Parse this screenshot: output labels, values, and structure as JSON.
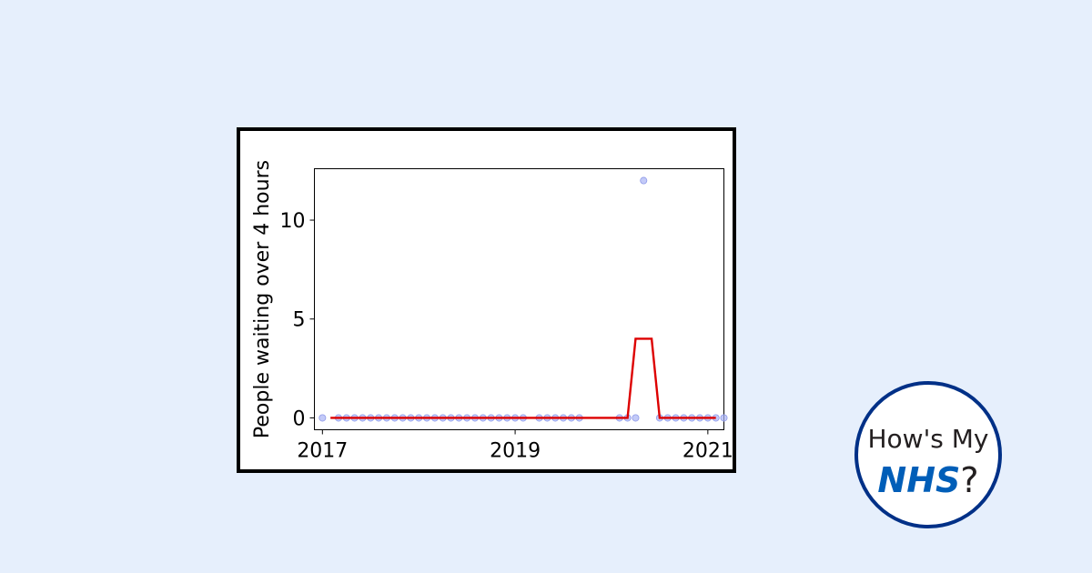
{
  "chart_data": {
    "type": "line",
    "title": "",
    "xlabel": "",
    "ylabel": "People waiting over 4 hours",
    "x_ticks": [
      "2017",
      "2019",
      "2021"
    ],
    "y_ticks": [
      0,
      5,
      10
    ],
    "xlim": [
      "2016-12",
      "2021-03"
    ],
    "ylim": [
      -0.6,
      12.6
    ],
    "grid": false,
    "legend": "none",
    "series": [
      {
        "kind": "scatter",
        "color": "#aab4f5",
        "points": [
          [
            "2017-01",
            0
          ],
          [
            "2017-03",
            0
          ],
          [
            "2017-04",
            0
          ],
          [
            "2017-05",
            0
          ],
          [
            "2017-06",
            0
          ],
          [
            "2017-07",
            0
          ],
          [
            "2017-08",
            0
          ],
          [
            "2017-09",
            0
          ],
          [
            "2017-10",
            0
          ],
          [
            "2017-11",
            0
          ],
          [
            "2017-12",
            0
          ],
          [
            "2018-01",
            0
          ],
          [
            "2018-02",
            0
          ],
          [
            "2018-03",
            0
          ],
          [
            "2018-04",
            0
          ],
          [
            "2018-05",
            0
          ],
          [
            "2018-06",
            0
          ],
          [
            "2018-07",
            0
          ],
          [
            "2018-08",
            0
          ],
          [
            "2018-09",
            0
          ],
          [
            "2018-10",
            0
          ],
          [
            "2018-11",
            0
          ],
          [
            "2018-12",
            0
          ],
          [
            "2019-01",
            0
          ],
          [
            "2019-02",
            0
          ],
          [
            "2019-04",
            0
          ],
          [
            "2019-05",
            0
          ],
          [
            "2019-06",
            0
          ],
          [
            "2019-07",
            0
          ],
          [
            "2019-08",
            0
          ],
          [
            "2019-09",
            0
          ],
          [
            "2020-02",
            0
          ],
          [
            "2020-03",
            0
          ],
          [
            "2020-04",
            0
          ],
          [
            "2020-05",
            12
          ],
          [
            "2020-07",
            0
          ],
          [
            "2020-08",
            0
          ],
          [
            "2020-09",
            0
          ],
          [
            "2020-10",
            0
          ],
          [
            "2020-11",
            0
          ],
          [
            "2020-12",
            0
          ],
          [
            "2021-01",
            0
          ],
          [
            "2021-02",
            0
          ],
          [
            "2021-03",
            0
          ]
        ]
      },
      {
        "kind": "line",
        "color": "#dd0000",
        "points": [
          [
            "2017-02",
            0
          ],
          [
            "2020-03",
            0
          ],
          [
            "2020-04",
            4
          ],
          [
            "2020-06",
            4
          ],
          [
            "2020-07",
            0
          ],
          [
            "2021-02",
            0
          ]
        ]
      }
    ]
  },
  "logo": {
    "line1": "How's My",
    "nhs": "NHS",
    "question": "?",
    "border_color": "#003087",
    "nhs_color": "#005eb8"
  }
}
